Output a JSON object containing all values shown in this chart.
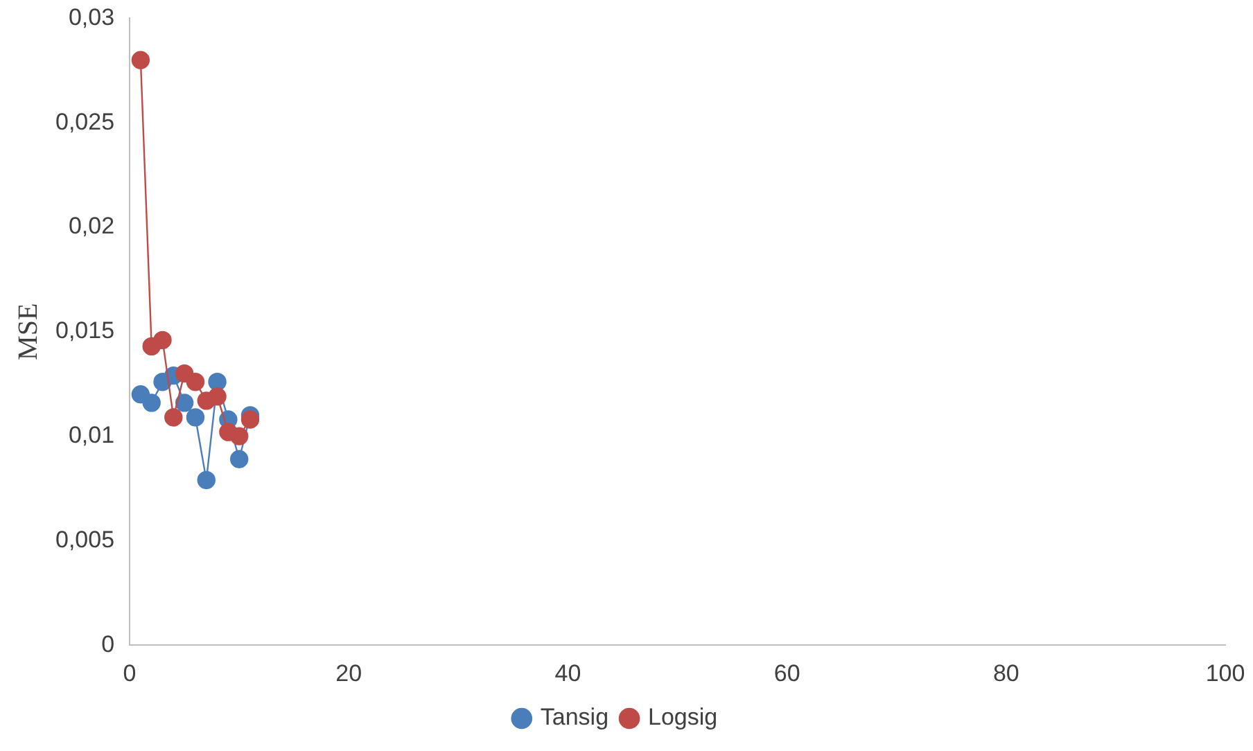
{
  "chart_data": {
    "type": "line",
    "ylabel": "MSE",
    "legend": "bottom",
    "grid": false,
    "marker": "circle",
    "line_style": "solid",
    "xlim": [
      0,
      100
    ],
    "xticks": [
      0,
      20,
      40,
      60,
      80,
      100
    ],
    "ylim": [
      0,
      0.03
    ],
    "yticks": [
      {
        "value": 0,
        "label": "0"
      },
      {
        "value": 0.005,
        "label": "0,005"
      },
      {
        "value": 0.01,
        "label": "0,01"
      },
      {
        "value": 0.015,
        "label": "0,015"
      },
      {
        "value": 0.02,
        "label": "0,02"
      },
      {
        "value": 0.025,
        "label": "0,025"
      },
      {
        "value": 0.03,
        "label": "0,03"
      }
    ],
    "x": [
      1,
      2,
      3,
      4,
      5,
      6,
      7,
      8,
      9,
      10,
      11
    ],
    "series": [
      {
        "name": "Tansig",
        "color": "#4a7ebb",
        "values": [
          0.012,
          0.0116,
          0.0126,
          0.0129,
          0.0116,
          0.0109,
          0.0079,
          0.0126,
          0.0108,
          0.0089,
          0.011
        ]
      },
      {
        "name": "Logsig",
        "color": "#be4b48",
        "values": [
          0.028,
          0.0143,
          0.0146,
          0.0109,
          0.013,
          0.0126,
          0.0117,
          0.0119,
          0.0102,
          0.01,
          0.0108
        ]
      }
    ]
  }
}
